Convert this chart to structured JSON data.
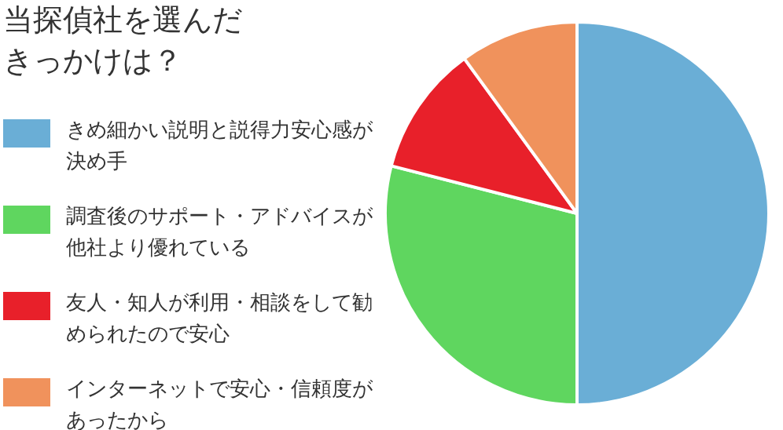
{
  "chart_data": {
    "type": "pie",
    "title": "当探偵社を選んだきっかけは？",
    "categories": [
      "きめ細かい説明と説得力安心感が決め手",
      "調査後のサポート・アドバイスが他社より優れている",
      "友人・知人が利用・相談をして勧められたので安心",
      "インターネットで安心・信頼度があったから"
    ],
    "values": [
      50,
      29,
      11,
      10
    ],
    "colors": [
      "#6aaed6",
      "#5fd65f",
      "#e8202a",
      "#f0925c"
    ],
    "legend": "left"
  }
}
